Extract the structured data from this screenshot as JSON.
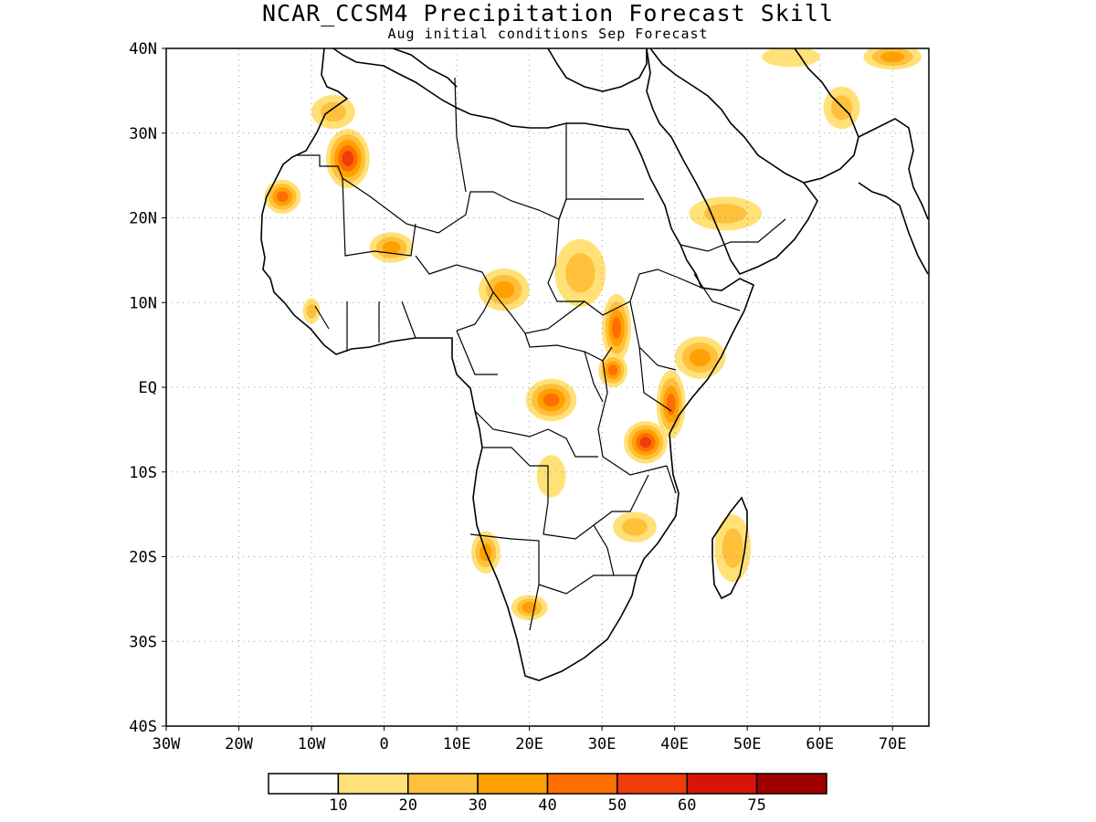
{
  "title": "NCAR_CCSM4 Precipitation Forecast Skill",
  "subtitle": "Aug initial conditions  Sep Forecast",
  "map": {
    "lon_range": [
      -30,
      75
    ],
    "lat_range": [
      -40,
      40
    ],
    "x_ticks": [
      "30W",
      "20W",
      "10W",
      "0",
      "10E",
      "20E",
      "30E",
      "40E",
      "50E",
      "60E",
      "70E"
    ],
    "y_ticks": [
      "40N",
      "30N",
      "20N",
      "10N",
      "EQ",
      "10S",
      "20S",
      "30S",
      "40S"
    ],
    "grid": "dotted",
    "background": "#ffffff",
    "coastline_color": "#000000"
  },
  "colorbar": {
    "labels": [
      "10",
      "20",
      "30",
      "40",
      "50",
      "60",
      "75"
    ],
    "colors": [
      "#ffffff",
      "#ffe178",
      "#ffc03c",
      "#ffa000",
      "#ff6e00",
      "#f03c0a",
      "#d71405",
      "#a00000"
    ]
  },
  "chart_data": {
    "type": "heatmap",
    "title": "NCAR_CCSM4 Precipitation Forecast Skill",
    "subtitle": "Aug initial conditions  Sep Forecast",
    "xlim": [
      -30,
      75
    ],
    "ylim": [
      -40,
      40
    ],
    "levels": [
      10,
      20,
      30,
      40,
      50,
      60,
      75
    ],
    "regions": [
      {
        "lon": -5,
        "lat": 27,
        "rx": 3,
        "ry": 3.5,
        "level": 50
      },
      {
        "lon": -14,
        "lat": 22.5,
        "rx": 2.5,
        "ry": 2,
        "level": 40
      },
      {
        "lon": -7,
        "lat": 32.5,
        "rx": 3,
        "ry": 2,
        "level": 20
      },
      {
        "lon": 1,
        "lat": 16.5,
        "rx": 3,
        "ry": 1.8,
        "level": 30
      },
      {
        "lon": -10,
        "lat": 9,
        "rx": 1.2,
        "ry": 1.5,
        "level": 20
      },
      {
        "lon": 16.5,
        "lat": 11.5,
        "rx": 3.5,
        "ry": 2.5,
        "level": 30
      },
      {
        "lon": 27,
        "lat": 13.5,
        "rx": 3.5,
        "ry": 4,
        "level": 20
      },
      {
        "lon": 32,
        "lat": 7,
        "rx": 2,
        "ry": 4,
        "level": 40
      },
      {
        "lon": 31.5,
        "lat": 2,
        "rx": 2,
        "ry": 2,
        "level": 40
      },
      {
        "lon": 23,
        "lat": -1.5,
        "rx": 3.5,
        "ry": 2.5,
        "level": 40
      },
      {
        "lon": 39.5,
        "lat": -2,
        "rx": 2,
        "ry": 4,
        "level": 40
      },
      {
        "lon": 36,
        "lat": -6.5,
        "rx": 3,
        "ry": 2.5,
        "level": 50
      },
      {
        "lon": 43.5,
        "lat": 3.5,
        "rx": 3.5,
        "ry": 2.5,
        "level": 30
      },
      {
        "lon": 47,
        "lat": 20.5,
        "rx": 5,
        "ry": 2,
        "level": 20
      },
      {
        "lon": 63,
        "lat": 33,
        "rx": 2.5,
        "ry": 2.5,
        "level": 20
      },
      {
        "lon": 70,
        "lat": 39,
        "rx": 4,
        "ry": 1.5,
        "level": 30
      },
      {
        "lon": 34.5,
        "lat": -16.5,
        "rx": 3,
        "ry": 1.8,
        "level": 20
      },
      {
        "lon": 48,
        "lat": -19,
        "rx": 2.5,
        "ry": 4,
        "level": 20
      },
      {
        "lon": 14,
        "lat": -19.5,
        "rx": 2,
        "ry": 2.5,
        "level": 30
      },
      {
        "lon": 20,
        "lat": -26,
        "rx": 2.5,
        "ry": 1.5,
        "level": 30
      },
      {
        "lon": 23,
        "lat": -10.5,
        "rx": 2,
        "ry": 2.5,
        "level": 10
      },
      {
        "lon": 56,
        "lat": 39,
        "rx": 4,
        "ry": 1.2,
        "level": 10
      }
    ]
  }
}
